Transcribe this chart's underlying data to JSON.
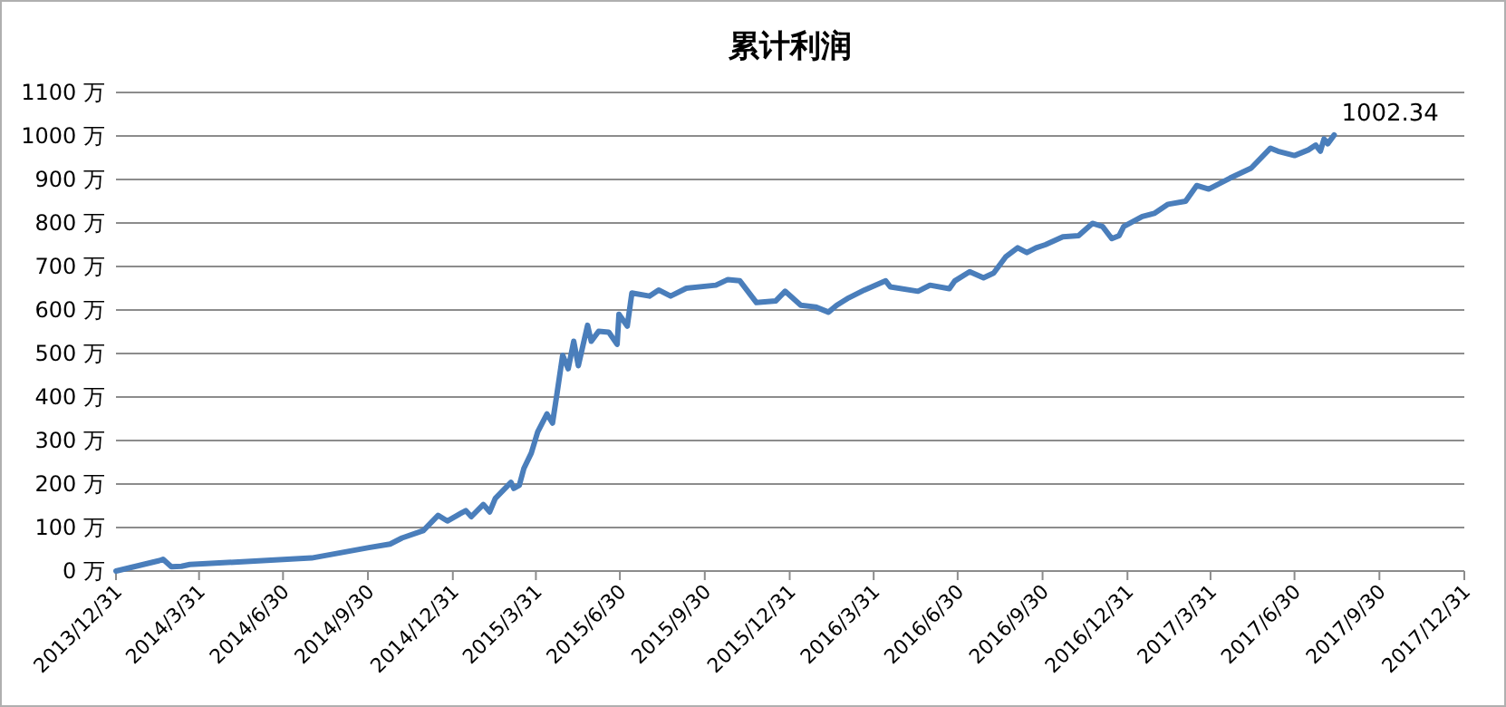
{
  "chart_data": {
    "type": "line",
    "title": "累计利润",
    "x": [
      "2013-12-31",
      "2014-02-16",
      "2014-02-20",
      "2014-03-01",
      "2014-03-12",
      "2014-03-21",
      "2014-07-31",
      "2014-10-01",
      "2014-10-24",
      "2014-11-06",
      "2014-11-29",
      "2014-12-15",
      "2014-12-25",
      "2015-01-14",
      "2015-01-20",
      "2015-02-02",
      "2015-02-09",
      "2015-02-15",
      "2015-03-04",
      "2015-03-07",
      "2015-03-13",
      "2015-03-18",
      "2015-03-26",
      "2015-04-02",
      "2015-04-12",
      "2015-04-18",
      "2015-04-23",
      "2015-04-29",
      "2015-05-05",
      "2015-05-11",
      "2015-05-16",
      "2015-05-26",
      "2015-05-30",
      "2015-06-07",
      "2015-06-18",
      "2015-06-27",
      "2015-06-29",
      "2015-07-08",
      "2015-07-13",
      "2015-08-01",
      "2015-08-11",
      "2015-08-24",
      "2015-09-10",
      "2015-10-12",
      "2015-10-25",
      "2015-11-07",
      "2015-11-25",
      "2015-12-16",
      "2015-12-26",
      "2016-01-12",
      "2016-01-28",
      "2016-02-11",
      "2016-02-20",
      "2016-03-04",
      "2016-03-21",
      "2016-04-13",
      "2016-04-18",
      "2016-05-18",
      "2016-05-31",
      "2016-06-21",
      "2016-06-27",
      "2016-07-13",
      "2016-07-28",
      "2016-08-08",
      "2016-08-21",
      "2016-09-03",
      "2016-09-13",
      "2016-09-23",
      "2016-10-03",
      "2016-10-22",
      "2016-11-08",
      "2016-11-23",
      "2016-12-04",
      "2016-12-14",
      "2016-12-22",
      "2016-12-27",
      "2017-01-16",
      "2017-01-29",
      "2017-02-13",
      "2017-03-04",
      "2017-03-16",
      "2017-03-29",
      "2017-04-21",
      "2017-05-14",
      "2017-06-04",
      "2017-06-12",
      "2017-06-30",
      "2017-07-15",
      "2017-07-23",
      "2017-07-28",
      "2017-08-01",
      "2017-08-05",
      "2017-08-12"
    ],
    "series": [
      {
        "color": "#4a7ebb",
        "values": [
          0,
          24,
          27,
          10,
          11,
          15,
          30,
          54,
          62,
          76,
          93,
          128,
          115,
          139,
          125,
          153,
          136,
          167,
          204,
          190,
          197,
          236,
          271,
          320,
          361,
          340,
          410,
          496,
          465,
          528,
          472,
          565,
          528,
          551,
          549,
          521,
          590,
          563,
          639,
          632,
          646,
          632,
          650,
          657,
          670,
          667,
          617,
          621,
          643,
          611,
          607,
          595,
          611,
          628,
          646,
          667,
          653,
          643,
          657,
          649,
          667,
          688,
          674,
          685,
          722,
          743,
          732,
          743,
          750,
          768,
          771,
          799,
          792,
          764,
          771,
          792,
          815,
          822,
          843,
          850,
          886,
          878,
          903,
          926,
          972,
          965,
          955,
          968,
          979,
          965,
          993,
          982,
          1002.34
        ]
      }
    ],
    "xlim": [
      "2013-12-31",
      "2017-12-31"
    ],
    "xticks": [
      {
        "value": "2013-12-31",
        "label": "2013/12/31"
      },
      {
        "value": "2014-03-31",
        "label": "2014/3/31"
      },
      {
        "value": "2014-06-30",
        "label": "2014/6/30"
      },
      {
        "value": "2014-09-30",
        "label": "2014/9/30"
      },
      {
        "value": "2014-12-31",
        "label": "2014/12/31"
      },
      {
        "value": "2015-03-31",
        "label": "2015/3/31"
      },
      {
        "value": "2015-06-30",
        "label": "2015/6/30"
      },
      {
        "value": "2015-09-30",
        "label": "2015/9/30"
      },
      {
        "value": "2015-12-31",
        "label": "2015/12/31"
      },
      {
        "value": "2016-03-31",
        "label": "2016/3/31"
      },
      {
        "value": "2016-06-30",
        "label": "2016/6/30"
      },
      {
        "value": "2016-09-30",
        "label": "2016/9/30"
      },
      {
        "value": "2016-12-31",
        "label": "2016/12/31"
      },
      {
        "value": "2017-03-31",
        "label": "2017/3/31"
      },
      {
        "value": "2017-06-30",
        "label": "2017/6/30"
      },
      {
        "value": "2017-09-30",
        "label": "2017/9/30"
      },
      {
        "value": "2017-12-31",
        "label": "2017/12/31"
      }
    ],
    "ylim": [
      0,
      1100
    ],
    "yticks": [
      {
        "value": 0,
        "label": "0 万"
      },
      {
        "value": 100,
        "label": "100 万"
      },
      {
        "value": 200,
        "label": "200 万"
      },
      {
        "value": 300,
        "label": "300 万"
      },
      {
        "value": 400,
        "label": "400 万"
      },
      {
        "value": 500,
        "label": "500 万"
      },
      {
        "value": 600,
        "label": "600 万"
      },
      {
        "value": 700,
        "label": "700 万"
      },
      {
        "value": 800,
        "label": "800 万"
      },
      {
        "value": 900,
        "label": "900 万"
      },
      {
        "value": 1000,
        "label": "1000 万"
      },
      {
        "value": 1100,
        "label": "1100 万"
      }
    ],
    "grid": "y",
    "annotations": [
      {
        "text": "1002.34",
        "x": "2017-08-12",
        "y": 1002.34
      }
    ]
  }
}
